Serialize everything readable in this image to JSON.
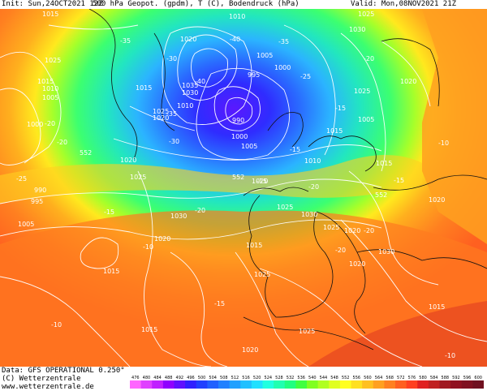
{
  "header": {
    "init": "Init: Sun,24OCT2021 12Z",
    "mid": "500 hPa Geopot. (gpdm), T (C), Bodendruck (hPa)",
    "valid": "Valid: Mon,08NOV2021 21Z"
  },
  "footer": {
    "line1": "Data: GFS OPERATIONAL 0.250°",
    "line2": "(C) Wetterzentrale",
    "line3": "www.wetterzentrale.de"
  },
  "colorbar": {
    "ticks": [
      "476",
      "480",
      "484",
      "488",
      "492",
      "496",
      "500",
      "504",
      "508",
      "512",
      "516",
      "520",
      "524",
      "528",
      "532",
      "536",
      "540",
      "544",
      "548",
      "552",
      "556",
      "560",
      "564",
      "568",
      "572",
      "576",
      "580",
      "584",
      "588",
      "592",
      "596",
      "600"
    ],
    "colors": [
      "#ff66ff",
      "#e040ff",
      "#c020ff",
      "#9000ff",
      "#6010ff",
      "#3020ff",
      "#2040ff",
      "#2060ff",
      "#2080ff",
      "#20a0ff",
      "#20c0ff",
      "#20e0ff",
      "#20ffe0",
      "#20ffb0",
      "#20ff80",
      "#40ff40",
      "#80ff20",
      "#b0ff20",
      "#e0ff20",
      "#ffff20",
      "#ffe020",
      "#ffc020",
      "#ffa020",
      "#ff8020",
      "#ff6020",
      "#ff4020",
      "#e02020",
      "#c02020",
      "#a01820",
      "#901020",
      "#801020",
      "#701020"
    ]
  },
  "map_labels": {
    "pressure": [
      {
        "text": "1015",
        "pos": "tl"
      },
      {
        "text": "1010",
        "pos": "tc"
      },
      {
        "text": "1025",
        "pos": "tr1"
      },
      {
        "text": "1030",
        "pos": "tr2"
      },
      {
        "text": "1025",
        "pos": "l1"
      },
      {
        "text": "1015",
        "pos": "l2"
      },
      {
        "text": "1010",
        "pos": "l3"
      },
      {
        "text": "1005",
        "pos": "l4"
      },
      {
        "text": "1000",
        "pos": "l5"
      },
      {
        "text": "1015",
        "pos": "c1"
      },
      {
        "text": "1020",
        "pos": "c2"
      },
      {
        "text": "1035",
        "pos": "c3"
      },
      {
        "text": "1030",
        "pos": "c4"
      },
      {
        "text": "1025",
        "pos": "c5"
      },
      {
        "text": "1020",
        "pos": "c6"
      },
      {
        "text": "1010",
        "pos": "c7"
      },
      {
        "text": "1005",
        "pos": "c8"
      },
      {
        "text": "1000",
        "pos": "c9"
      },
      {
        "text": "995",
        "pos": "c10"
      },
      {
        "text": "990",
        "pos": "c11"
      },
      {
        "text": "1000",
        "pos": "c12"
      },
      {
        "text": "1005",
        "pos": "c13"
      },
      {
        "text": "1010",
        "pos": "c14"
      },
      {
        "text": "1015",
        "pos": "c15"
      },
      {
        "text": "1025",
        "pos": "r1"
      },
      {
        "text": "1020",
        "pos": "r2"
      },
      {
        "text": "1015",
        "pos": "r3"
      },
      {
        "text": "1005",
        "pos": "r4"
      },
      {
        "text": "1020",
        "pos": "m1"
      },
      {
        "text": "1025",
        "pos": "m2"
      },
      {
        "text": "990",
        "pos": "m3"
      },
      {
        "text": "995",
        "pos": "m4"
      },
      {
        "text": "1005",
        "pos": "m5"
      },
      {
        "text": "1030",
        "pos": "m6"
      },
      {
        "text": "1020",
        "pos": "m7"
      },
      {
        "text": "1015",
        "pos": "m8"
      },
      {
        "text": "1020",
        "pos": "m9"
      },
      {
        "text": "1025",
        "pos": "m10"
      },
      {
        "text": "1030",
        "pos": "m11"
      },
      {
        "text": "1020",
        "pos": "m12"
      },
      {
        "text": "1025",
        "pos": "m13"
      },
      {
        "text": "1015",
        "pos": "m14"
      },
      {
        "text": "1020",
        "pos": "m15"
      },
      {
        "text": "1020",
        "pos": "m16"
      },
      {
        "text": "1015",
        "pos": "m17"
      },
      {
        "text": "1025",
        "pos": "m18"
      },
      {
        "text": "1025",
        "pos": "m19"
      },
      {
        "text": "1020",
        "pos": "m20"
      },
      {
        "text": "1030",
        "pos": "m21"
      },
      {
        "text": "1020",
        "pos": "m22"
      },
      {
        "text": "1015",
        "pos": "m23"
      }
    ],
    "temperature": [
      "-35",
      "-40",
      "-35",
      "-40",
      "-30",
      "-35",
      "-30",
      "-25",
      "-20",
      "-25",
      "-20",
      "-15",
      "-20",
      "-15",
      "-15",
      "-20",
      "-20",
      "-15",
      "-10",
      "-15",
      "-20",
      "-20",
      "-10",
      "-15",
      "-10",
      "-10"
    ],
    "height_labels": [
      "552",
      "552",
      "552"
    ]
  }
}
